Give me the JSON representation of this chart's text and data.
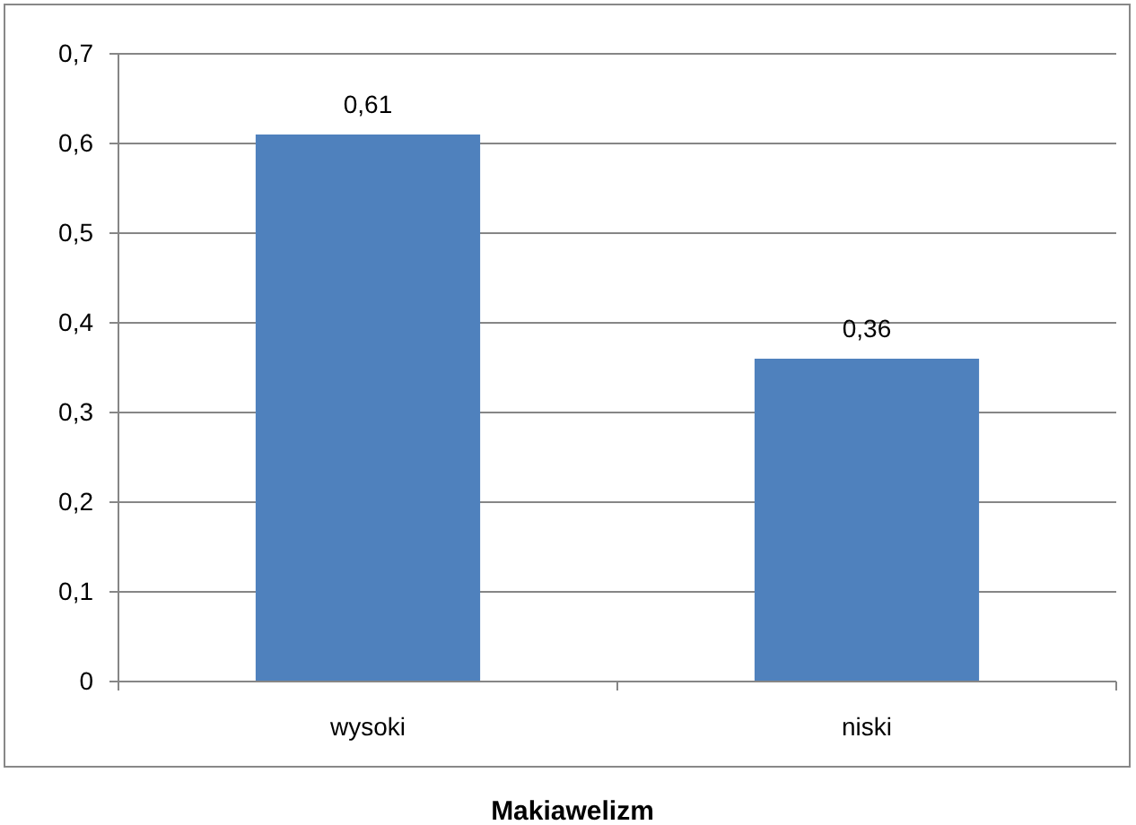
{
  "chart_data": {
    "type": "bar",
    "xlabel": "Makiawelizm",
    "categories": [
      "wysoki",
      "niski"
    ],
    "values": [
      0.61,
      0.36
    ],
    "color": "#4f81bd",
    "value_labels": [
      "0,61",
      "0,36"
    ],
    "ylim": [
      0,
      0.7
    ],
    "yticks": [
      0,
      {
        "value": 0.1,
        "label": "0,1"
      },
      {
        "value": 0.2,
        "label": "0,2"
      },
      {
        "value": 0.3,
        "label": "0,3"
      },
      {
        "value": 0.4,
        "label": "0,4"
      },
      {
        "value": 0.5,
        "label": "0,5"
      },
      {
        "value": 0.6,
        "label": "0,6"
      },
      {
        "value": 0.7,
        "label": "0,7"
      }
    ],
    "grid": "y"
  }
}
